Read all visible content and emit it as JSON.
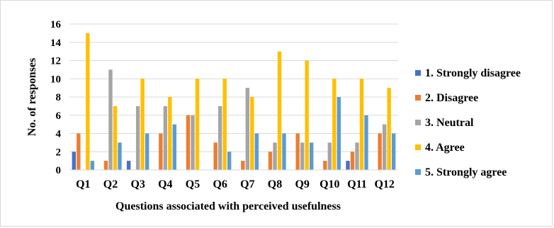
{
  "chart_data": {
    "type": "bar",
    "title": "",
    "xlabel": "Questions associated with perceived usefulness",
    "ylabel": "No. of responses",
    "ylim": [
      0,
      16
    ],
    "yticks": [
      0,
      2,
      4,
      6,
      8,
      10,
      12,
      14,
      16
    ],
    "grid": true,
    "legend_position": "right",
    "categories": [
      "Q1",
      "Q2",
      "Q3",
      "Q4",
      "Q5",
      "Q6",
      "Q7",
      "Q8",
      "Q9",
      "Q10",
      "Q11",
      "Q12"
    ],
    "series": [
      {
        "name": "1. Strongly disagree",
        "color": "#4472c4",
        "values": [
          2,
          0,
          1,
          0,
          0,
          0,
          0,
          0,
          0,
          0,
          1,
          0
        ]
      },
      {
        "name": "2. Disagree",
        "color": "#ed7d31",
        "values": [
          4,
          1,
          0,
          4,
          6,
          3,
          1,
          2,
          4,
          1,
          2,
          4
        ]
      },
      {
        "name": "3. Neutral",
        "color": "#a5a5a5",
        "values": [
          0,
          11,
          7,
          7,
          6,
          7,
          9,
          3,
          3,
          3,
          3,
          5
        ]
      },
      {
        "name": "4. Agree",
        "color": "#ffc000",
        "values": [
          15,
          7,
          10,
          8,
          10,
          10,
          8,
          13,
          12,
          10,
          10,
          9
        ]
      },
      {
        "name": "5. Strongly agree",
        "color": "#5b9bd5",
        "values": [
          1,
          3,
          4,
          5,
          0,
          2,
          4,
          4,
          3,
          8,
          6,
          4
        ]
      }
    ]
  }
}
